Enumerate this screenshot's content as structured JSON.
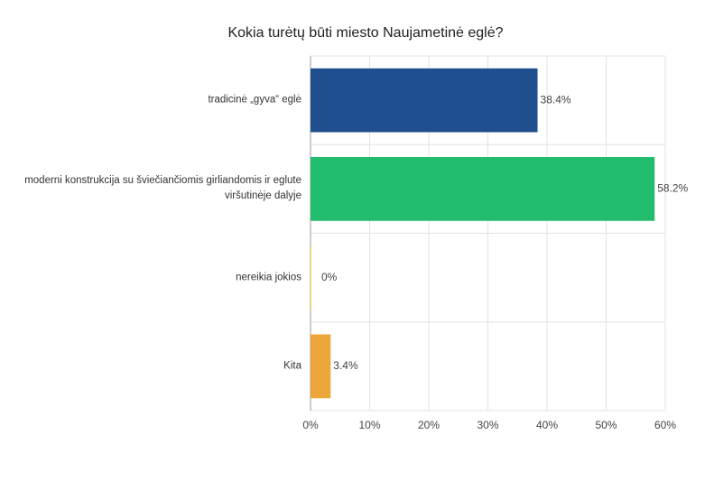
{
  "chart_data": {
    "type": "barh",
    "title": "Kokia turėtų būti miesto Naujametinė eglė?",
    "categories": [
      "tradicinė „gyva“ eglė",
      "moderni konstrukcija su šviečiančiomis girliandomis ir eglute viršutinėje dalyje",
      "nereikia jokios",
      "Kita"
    ],
    "values": [
      38.4,
      58.2,
      0,
      3.4
    ],
    "value_labels": [
      "38.4%",
      "58.2%",
      "0%",
      "3.4%"
    ],
    "colors": [
      "#1f4f8f",
      "#21bc6c",
      "#f2e14c",
      "#eca63a"
    ],
    "xlim": [
      0,
      60
    ],
    "xticks": [
      {
        "value": 0,
        "label": "0%"
      },
      {
        "value": 10,
        "label": "10%"
      },
      {
        "value": 20,
        "label": "20%"
      },
      {
        "value": 30,
        "label": "30%"
      },
      {
        "value": 40,
        "label": "40%"
      },
      {
        "value": 50,
        "label": "50%"
      },
      {
        "value": 60,
        "label": "60%"
      }
    ],
    "grid": true
  }
}
